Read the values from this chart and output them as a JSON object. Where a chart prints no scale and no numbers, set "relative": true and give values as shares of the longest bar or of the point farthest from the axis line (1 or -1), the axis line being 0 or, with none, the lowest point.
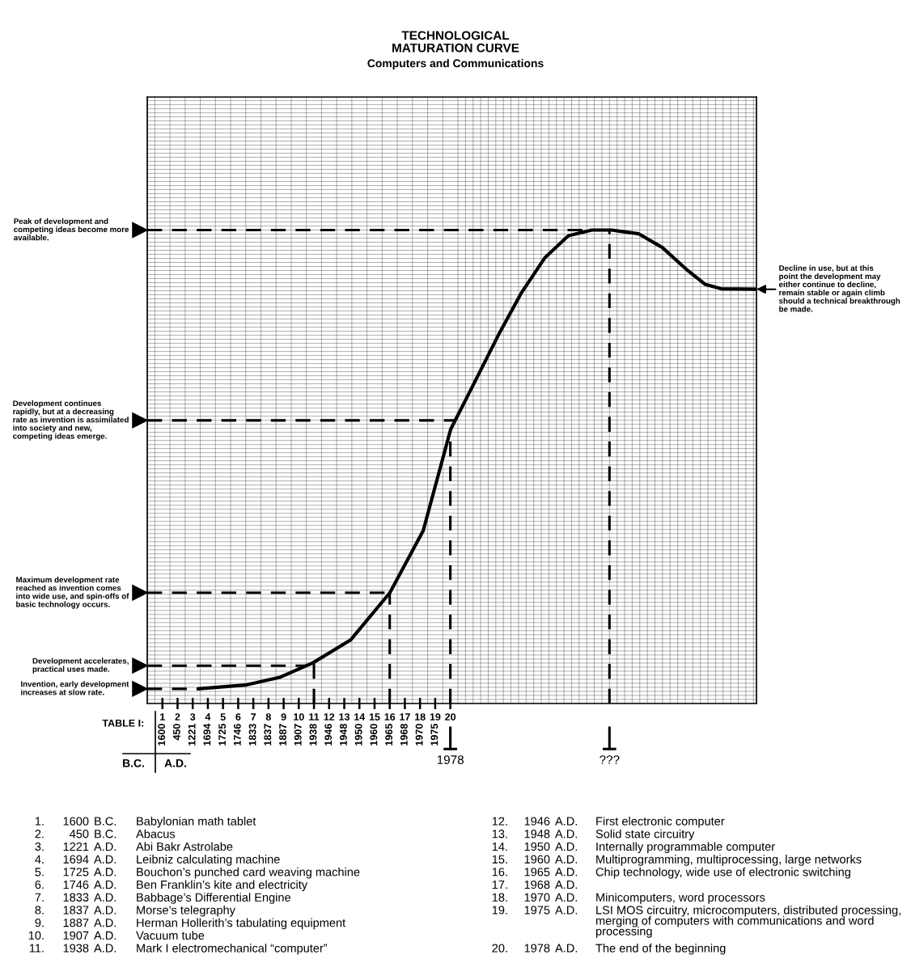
{
  "chart_data": {
    "type": "line",
    "title": "TECHNOLOGICAL\nMATURATION CURVE",
    "subtitle": "Computers and Communications",
    "xlabel": "TABLE I:",
    "relative": true,
    "x": [
      3.35,
      6.47,
      8.72,
      10.94,
      13.41,
      16.01,
      18.21,
      20.02,
      21.34,
      23.15,
      24.7,
      26.25,
      27.79,
      29.34,
      30.64,
      32.44,
      33.99,
      35.54,
      36.83,
      37.86,
      40.19
    ],
    "series": [
      {
        "color": "#000000",
        "values": [
          0.031,
          0.039,
          0.055,
          0.086,
          0.134,
          0.234,
          0.365,
          0.579,
          0.662,
          0.777,
          0.868,
          0.942,
          0.988,
          1,
          1,
          0.992,
          0.963,
          0.918,
          0.885,
          0.876,
          0.875
        ]
      }
    ],
    "xlim": [
      0,
      40.2
    ],
    "xticks": [
      1,
      2,
      3,
      4,
      5,
      6,
      7,
      8,
      9,
      10,
      11,
      12,
      13,
      14,
      15,
      16,
      17,
      18,
      19,
      20
    ],
    "tick_labels": "x",
    "grid": true,
    "marker": "none",
    "line_style": "solid",
    "ref_lines": [
      {
        "axis": "y",
        "value": 1,
        "label": "Peak of development and\ncompeting ideas become more\navailable.",
        "color": "#000000",
        "line_style": "dashed"
      },
      {
        "axis": "y",
        "value": 0.598,
        "label": "Development continues\nrapidly, but at a decreasing\nrate as invention is assimilated\ninto society and new,\ncompeting ideas emerge.",
        "color": "#000000",
        "line_style": "dashed"
      },
      {
        "axis": "y",
        "value": 0.234,
        "label": "Maximum development rate\nreached as invention comes\ninto wide use, and spin-offs of\nbasic technology occurs.",
        "color": "#000000",
        "line_style": "dashed"
      },
      {
        "axis": "y",
        "value": 0.08,
        "label": "Development accelerates,\npractical uses made.",
        "color": "#000000",
        "line_style": "dashed"
      },
      {
        "axis": "y",
        "value": 0.031,
        "label": "Invention, early development\nincreases at slow rate.",
        "color": "#000000",
        "line_style": "dashed"
      },
      {
        "axis": "x",
        "value": 11,
        "color": "#000000",
        "line_style": "dashed"
      },
      {
        "axis": "x",
        "value": 16,
        "color": "#000000",
        "line_style": "dashed"
      },
      {
        "axis": "x",
        "value": 20,
        "color": "#000000",
        "line_style": "dashed"
      },
      {
        "axis": "x",
        "value": 30.5,
        "color": "#000000",
        "line_style": "dashed"
      }
    ],
    "annotations": [
      {
        "text": "Decline in use, but at this\npoint the development may\neither continue to decline,\nremain stable or again climb\nshould a technical breakthrough\nbe made.",
        "x": 40.19,
        "y": 0.875
      },
      {
        "text": "1978",
        "x": 20
      },
      {
        "text": "???",
        "x": 30.5
      },
      "1600",
      "450",
      "1221",
      "1694",
      "1725",
      "1746",
      "1833",
      "1837",
      "1887",
      "1907",
      "1938",
      "1946",
      "1948",
      "1950",
      "1960",
      "1965",
      "1968",
      "1970",
      "1975",
      "B.C.",
      "A.D.",
      "1. 1600 B.C. Babylonian math tablet",
      "2. 450 B.C. Abacus",
      "3. 1221 A.D. Abi Bakr Astrolabe",
      "4. 1694 A.D. Leibniz calculating machine",
      "5. 1725 A.D. Bouchon’s punched card weaving machine",
      "6. 1746 A.D. Ben Franklin’s kite and electricity",
      "7. 1833 A.D. Babbage’s Differential Engine",
      "8. 1837 A.D. Morse’s telegraphy",
      "9. 1887 A.D. Herman Hollerith’s tabulating equipment",
      "10. 1907 A.D. Vacuum tube",
      "11. 1938 A.D. Mark I electromechanical “computer”",
      "12. 1946 A.D. First electronic computer",
      "13. 1948 A.D. Solid state circuitry",
      "14. 1950 A.D. Internally programmable computer",
      "15. 1960 A.D. Multiprogramming, multiprocessing, large networks",
      "16. 1965 A.D. Chip technology, wide use of electronic switching",
      "17. 1968 A.D.",
      "18. 1970 A.D. Minicomputers, word processors",
      "19. 1975 A.D. LSI MOS circuitry, microcomputers, distributed processing, merging of computers with communications and word processing",
      "20. 1978 A.D. The end of the beginning"
    ]
  }
}
